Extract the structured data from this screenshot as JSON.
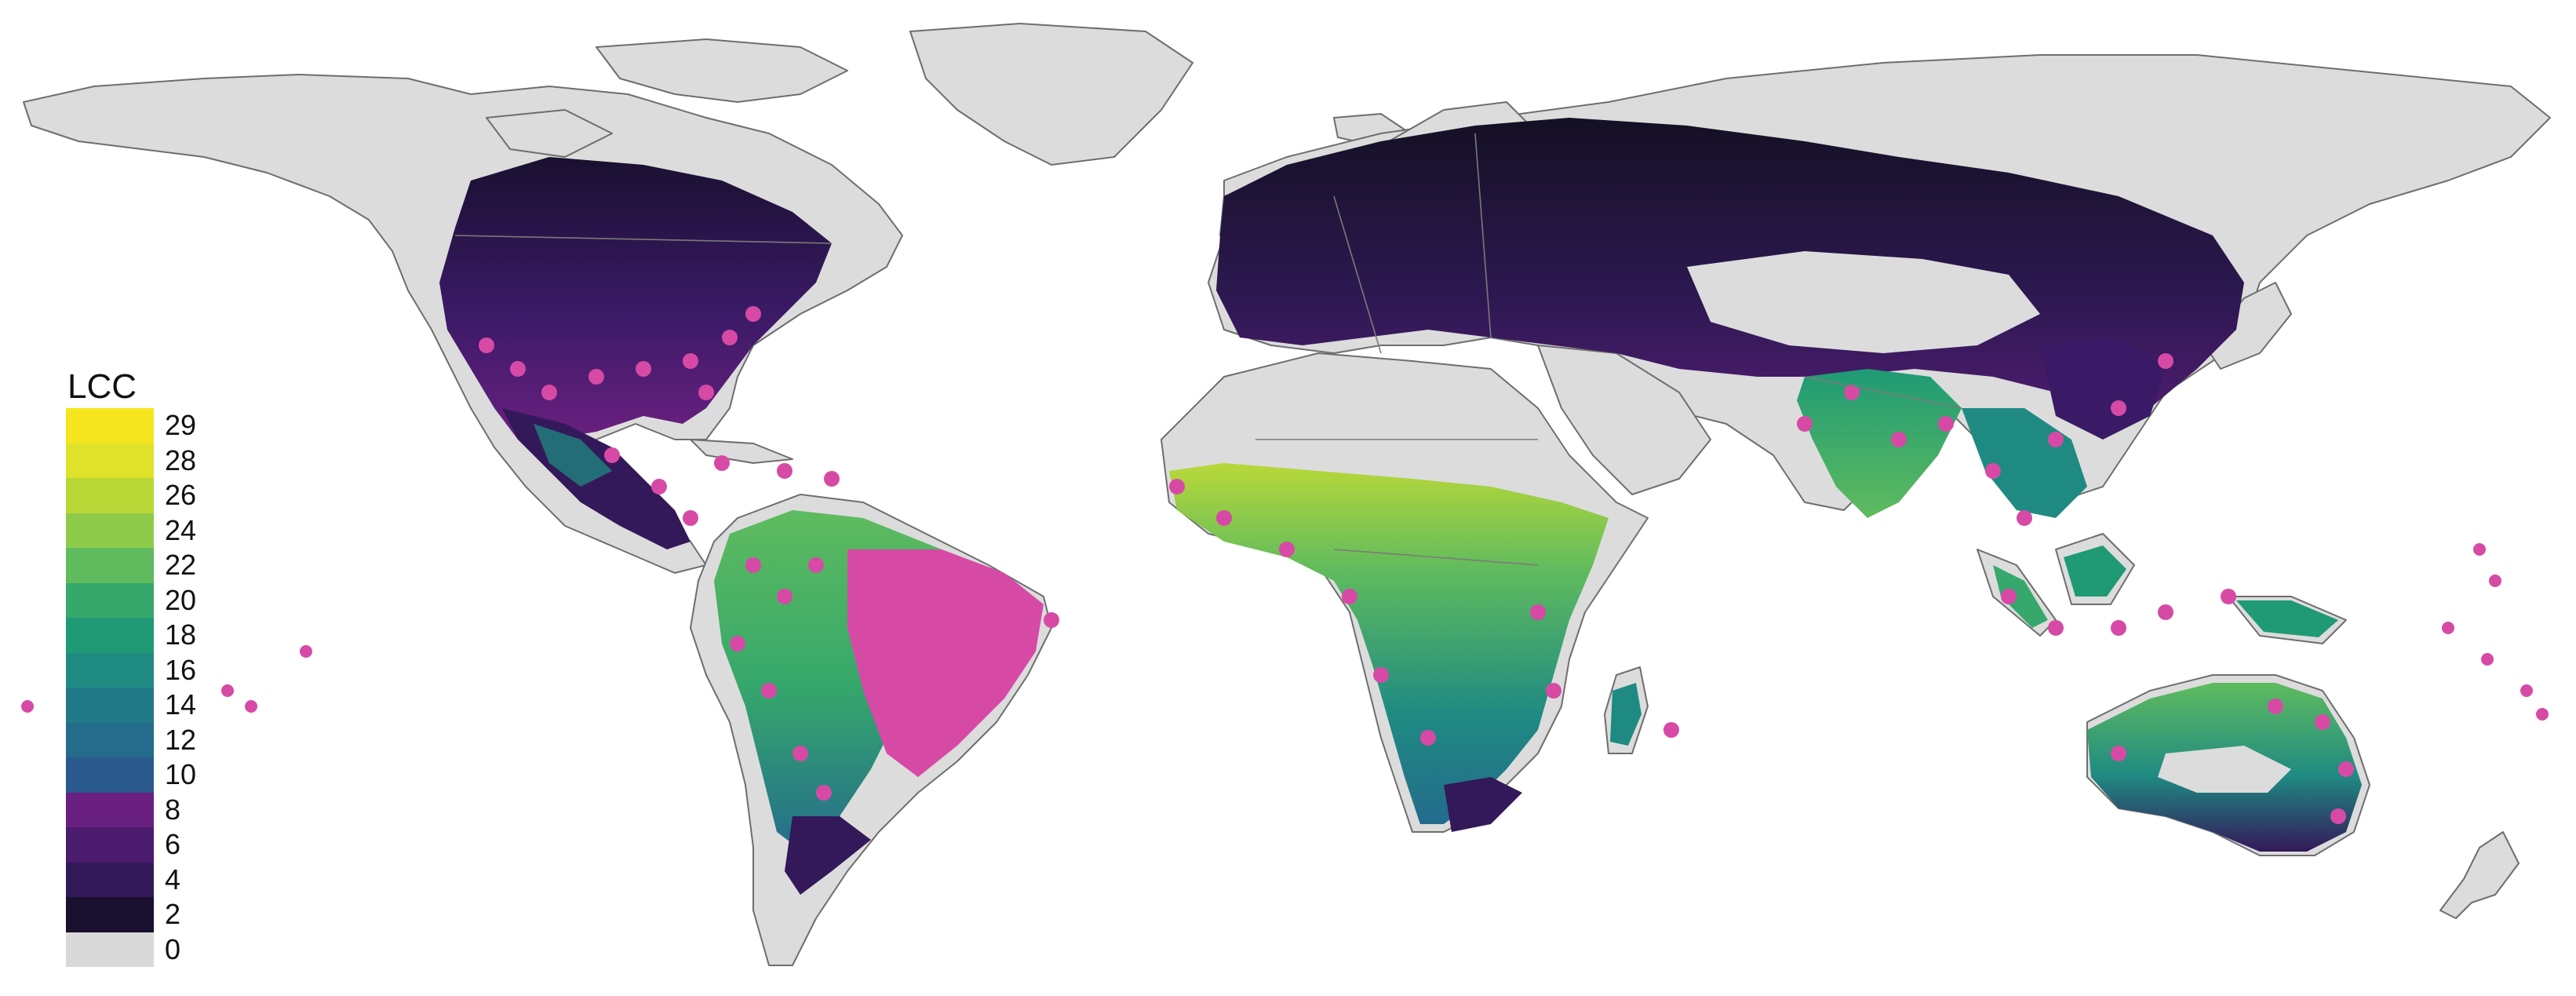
{
  "legend": {
    "title": "LCC",
    "entries": [
      {
        "label": "29",
        "color": "#f5e51f"
      },
      {
        "label": "28",
        "color": "#dfe22a"
      },
      {
        "label": "26",
        "color": "#b9d838"
      },
      {
        "label": "24",
        "color": "#8fcb4b"
      },
      {
        "label": "22",
        "color": "#5fbb5e"
      },
      {
        "label": "20",
        "color": "#36a86b"
      },
      {
        "label": "18",
        "color": "#1f9a75"
      },
      {
        "label": "16",
        "color": "#1f8a82"
      },
      {
        "label": "14",
        "color": "#207a88"
      },
      {
        "label": "12",
        "color": "#246b8c"
      },
      {
        "label": "10",
        "color": "#2a5a8e"
      },
      {
        "label": "8",
        "color": "#6a2080"
      },
      {
        "label": "6",
        "color": "#4c1c6e"
      },
      {
        "label": "4",
        "color": "#33195a"
      },
      {
        "label": "2",
        "color": "#1a1030"
      },
      {
        "label": "0",
        "color": "#d9d9d9"
      }
    ]
  },
  "colors": {
    "land_nodata": "#dcdcdc",
    "occurrence_points": "#d64aa6",
    "coastline": "#6e6e6e"
  }
}
